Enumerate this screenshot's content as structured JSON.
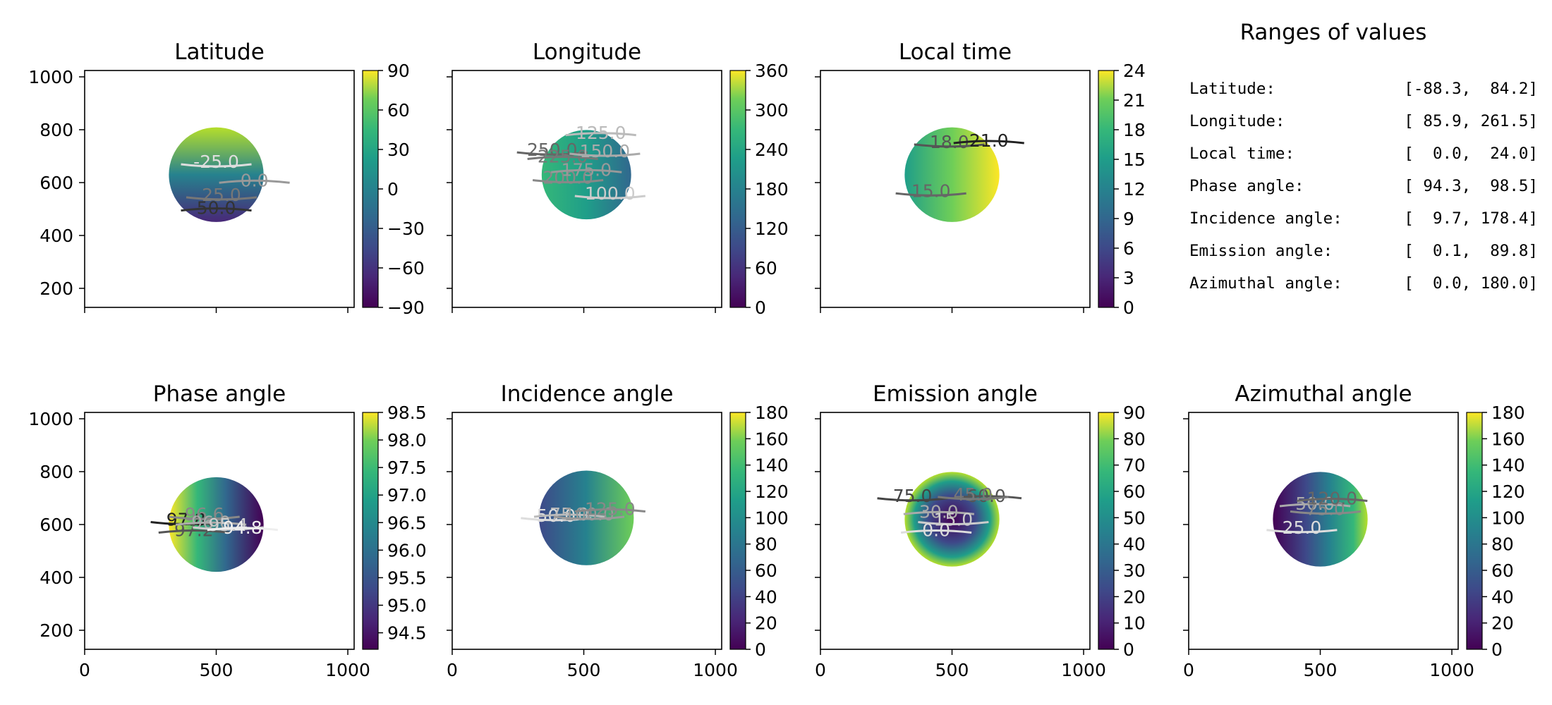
{
  "chart_data": [
    {
      "type": "heatmap",
      "title": "Latitude",
      "xlim": [
        0,
        1024
      ],
      "ylim": [
        128,
        1024
      ],
      "xticks": [],
      "yticks": [
        200,
        400,
        600,
        800,
        1000
      ],
      "disk": {
        "cx": 500,
        "cy": 630,
        "r": 180
      },
      "colorbar": {
        "min": -90,
        "max": 90,
        "ticks": [
          90,
          60,
          30,
          0,
          -30,
          -60,
          -90
        ],
        "tick_labels": [
          "90",
          "60",
          "30",
          "0",
          "−30",
          "−60",
          "−90"
        ]
      },
      "contour_labels": [
        {
          "text": "-25.0",
          "x": 500,
          "y": 680,
          "color": "#dddddd"
        },
        {
          "text": "0.0",
          "x": 645,
          "y": 610,
          "color": "#999999"
        },
        {
          "text": "25.0",
          "x": 520,
          "y": 555,
          "color": "#777777"
        },
        {
          "text": "50.0",
          "x": 500,
          "y": 505,
          "color": "#333333"
        }
      ]
    },
    {
      "type": "heatmap",
      "title": "Longitude",
      "xlim": [
        0,
        1024
      ],
      "ylim": [
        128,
        1024
      ],
      "xticks": [],
      "yticks": [],
      "disk": {
        "cx": 510,
        "cy": 630,
        "r": 170
      },
      "colorbar": {
        "min": 0,
        "max": 360,
        "ticks": [
          360,
          300,
          240,
          180,
          120,
          60,
          0
        ],
        "tick_labels": [
          "360",
          "300",
          "240",
          "180",
          "120",
          "60",
          "0"
        ]
      },
      "contour_labels": [
        {
          "text": "250.0",
          "x": 380,
          "y": 725,
          "color": "#666666"
        },
        {
          "text": "225.0",
          "x": 420,
          "y": 700,
          "color": "#777777"
        },
        {
          "text": "200.0",
          "x": 440,
          "y": 620,
          "color": "#888888"
        },
        {
          "text": "175.0",
          "x": 510,
          "y": 650,
          "color": "#999999"
        },
        {
          "text": "150.0",
          "x": 580,
          "y": 720,
          "color": "#aaaaaa"
        },
        {
          "text": "125.0",
          "x": 565,
          "y": 790,
          "color": "#bbbbbb"
        },
        {
          "text": "100.0",
          "x": 600,
          "y": 560,
          "color": "#cccccc"
        }
      ]
    },
    {
      "type": "heatmap",
      "title": "Local time",
      "xlim": [
        0,
        1024
      ],
      "ylim": [
        128,
        1024
      ],
      "xticks": [],
      "yticks": [],
      "disk": {
        "cx": 500,
        "cy": 630,
        "r": 180
      },
      "colorbar": {
        "min": 0,
        "max": 24,
        "ticks": [
          24,
          21,
          18,
          15,
          12,
          9,
          6,
          3,
          0
        ],
        "tick_labels": [
          "24",
          "21",
          "18",
          "15",
          "12",
          "9",
          "6",
          "3",
          "0"
        ]
      },
      "contour_labels": [
        {
          "text": "18.0",
          "x": 490,
          "y": 755,
          "color": "#555555"
        },
        {
          "text": "21.0",
          "x": 640,
          "y": 760,
          "color": "#222222"
        },
        {
          "text": "15.0",
          "x": 420,
          "y": 570,
          "color": "#666666"
        }
      ]
    },
    {
      "type": "heatmap",
      "title": "Phase angle",
      "xlim": [
        0,
        1024
      ],
      "ylim": [
        128,
        1024
      ],
      "xticks": [
        0,
        500,
        1000
      ],
      "yticks": [
        200,
        400,
        600,
        800,
        1000
      ],
      "disk": {
        "cx": 500,
        "cy": 600,
        "r": 180
      },
      "colorbar": {
        "min": 94.2,
        "max": 98.5,
        "ticks": [
          98.5,
          98.0,
          97.5,
          97.0,
          96.5,
          96.0,
          95.5,
          95.0,
          94.5
        ],
        "tick_labels": [
          "98.5",
          "98.0",
          "97.5",
          "97.0",
          "96.5",
          "96.0",
          "95.5",
          "95.0",
          "94.5"
        ]
      },
      "contour_labels": [
        {
          "text": "97.8",
          "x": 385,
          "y": 620,
          "color": "#222222"
        },
        {
          "text": "97.2",
          "x": 415,
          "y": 580,
          "color": "#555555"
        },
        {
          "text": "96.6",
          "x": 455,
          "y": 640,
          "color": "#888888"
        },
        {
          "text": "96.0",
          "x": 480,
          "y": 610,
          "color": "#aaaaaa"
        },
        {
          "text": "95.4",
          "x": 545,
          "y": 600,
          "color": "#cccccc"
        },
        {
          "text": "94.8",
          "x": 600,
          "y": 590,
          "color": "#eeeeee"
        }
      ]
    },
    {
      "type": "heatmap",
      "title": "Incidence angle",
      "xlim": [
        0,
        1024
      ],
      "ylim": [
        128,
        1024
      ],
      "xticks": [
        0,
        500,
        1000
      ],
      "yticks": [],
      "disk": {
        "cx": 510,
        "cy": 625,
        "r": 180
      },
      "colorbar": {
        "min": 0,
        "max": 180,
        "ticks": [
          180,
          160,
          140,
          120,
          100,
          80,
          60,
          40,
          20,
          0
        ],
        "tick_labels": [
          "180",
          "160",
          "140",
          "120",
          "100",
          "80",
          "60",
          "40",
          "20",
          "0"
        ]
      },
      "contour_labels": [
        {
          "text": "50.0",
          "x": 395,
          "y": 635,
          "color": "#dddddd"
        },
        {
          "text": "75.0",
          "x": 445,
          "y": 640,
          "color": "#bbbbbb"
        },
        {
          "text": "100.0",
          "x": 520,
          "y": 640,
          "color": "#999999"
        },
        {
          "text": "125.0",
          "x": 600,
          "y": 660,
          "color": "#888888"
        }
      ]
    },
    {
      "type": "heatmap",
      "title": "Emission angle",
      "xlim": [
        0,
        1024
      ],
      "ylim": [
        128,
        1024
      ],
      "xticks": [
        0,
        500,
        1000
      ],
      "yticks": [],
      "disk": {
        "cx": 500,
        "cy": 620,
        "r": 180
      },
      "colorbar": {
        "min": 0,
        "max": 90,
        "ticks": [
          90,
          80,
          70,
          60,
          50,
          40,
          30,
          20,
          10,
          0
        ],
        "tick_labels": [
          "90",
          "80",
          "70",
          "60",
          "50",
          "40",
          "30",
          "20",
          "10",
          "0"
        ]
      },
      "contour_labels": [
        {
          "text": "75.0",
          "x": 350,
          "y": 710,
          "color": "#444444"
        },
        {
          "text": "60.0",
          "x": 630,
          "y": 710,
          "color": "#555555"
        },
        {
          "text": "45.0",
          "x": 580,
          "y": 715,
          "color": "#777777"
        },
        {
          "text": "30.0",
          "x": 450,
          "y": 650,
          "color": "#aaaaaa"
        },
        {
          "text": "15.0",
          "x": 505,
          "y": 620,
          "color": "#cccccc"
        },
        {
          "text": "0.0",
          "x": 440,
          "y": 580,
          "color": "#dddddd"
        }
      ]
    },
    {
      "type": "heatmap",
      "title": "Azimuthal angle",
      "xlim": [
        0,
        1024
      ],
      "ylim": [
        128,
        1024
      ],
      "xticks": [
        0,
        500,
        1000
      ],
      "yticks": [],
      "disk": {
        "cx": 500,
        "cy": 620,
        "r": 180
      },
      "colorbar": {
        "min": 0,
        "max": 180,
        "ticks": [
          180,
          160,
          140,
          120,
          100,
          80,
          60,
          40,
          20,
          0
        ],
        "tick_labels": [
          "180",
          "160",
          "140",
          "120",
          "100",
          "80",
          "60",
          "40",
          "20",
          "0"
        ]
      },
      "contour_labels": [
        {
          "text": "25.0",
          "x": 430,
          "y": 590,
          "color": "#dddddd"
        },
        {
          "text": "50.0",
          "x": 480,
          "y": 680,
          "color": "#aaaaaa"
        },
        {
          "text": "75.0",
          "x": 520,
          "y": 660,
          "color": "#888888"
        },
        {
          "text": "120.0",
          "x": 545,
          "y": 700,
          "color": "#666666"
        }
      ]
    }
  ],
  "ranges": {
    "title": "Ranges of values",
    "rows": [
      {
        "label": "Latitude:",
        "value": "[-88.3,  84.2]"
      },
      {
        "label": "Longitude:",
        "value": "[ 85.9, 261.5]"
      },
      {
        "label": "Local time:",
        "value": "[  0.0,  24.0]"
      },
      {
        "label": "Phase angle:",
        "value": "[ 94.3,  98.5]"
      },
      {
        "label": "Incidence angle:",
        "value": "[  9.7, 178.4]"
      },
      {
        "label": "Emission angle:",
        "value": "[  0.1,  89.8]"
      },
      {
        "label": "Azimuthal angle:",
        "value": "[  0.0, 180.0]"
      }
    ]
  }
}
